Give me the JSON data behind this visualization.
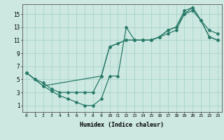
{
  "xlabel": "Humidex (Indice chaleur)",
  "bg_color": "#cce8e0",
  "grid_color": "#a8d4cc",
  "line_color": "#2a7a6a",
  "xlim": [
    -0.5,
    23.5
  ],
  "ylim": [
    0.0,
    16.5
  ],
  "xticks": [
    0,
    1,
    2,
    3,
    4,
    5,
    6,
    7,
    8,
    9,
    10,
    11,
    12,
    13,
    14,
    15,
    16,
    17,
    18,
    19,
    20,
    21,
    22,
    23
  ],
  "yticks": [
    1,
    3,
    5,
    7,
    9,
    11,
    13,
    15
  ],
  "line1_x": [
    0,
    1,
    2,
    3,
    4,
    5,
    6,
    7,
    8,
    9,
    10,
    11,
    12,
    13,
    14,
    15,
    16,
    17,
    18,
    19,
    20,
    21,
    22,
    23
  ],
  "line1_y": [
    6.0,
    5.0,
    4.5,
    3.5,
    3.0,
    3.0,
    3.0,
    3.0,
    3.0,
    5.5,
    10.0,
    10.5,
    11.0,
    11.0,
    11.0,
    11.0,
    11.5,
    12.0,
    12.5,
    15.0,
    15.5,
    14.0,
    11.5,
    11.0
  ],
  "line2_x": [
    0,
    1,
    2,
    3,
    4,
    5,
    6,
    7,
    8,
    9,
    10,
    11,
    12,
    13,
    14,
    15,
    16,
    17,
    18,
    19,
    20,
    21,
    22,
    23
  ],
  "line2_y": [
    6.0,
    5.0,
    4.0,
    3.2,
    2.5,
    2.0,
    1.5,
    1.0,
    1.0,
    2.0,
    5.5,
    5.5,
    13.0,
    11.0,
    11.0,
    11.0,
    11.5,
    12.5,
    13.0,
    15.5,
    16.0,
    14.0,
    12.5,
    12.0
  ],
  "line3_x": [
    0,
    2,
    9,
    10,
    12,
    13,
    14,
    15,
    16,
    17,
    18,
    19,
    20,
    21,
    22,
    23
  ],
  "line3_y": [
    6.0,
    4.0,
    5.5,
    10.0,
    11.0,
    11.0,
    11.0,
    11.0,
    11.5,
    12.5,
    13.0,
    15.0,
    16.0,
    14.0,
    11.5,
    11.0
  ]
}
